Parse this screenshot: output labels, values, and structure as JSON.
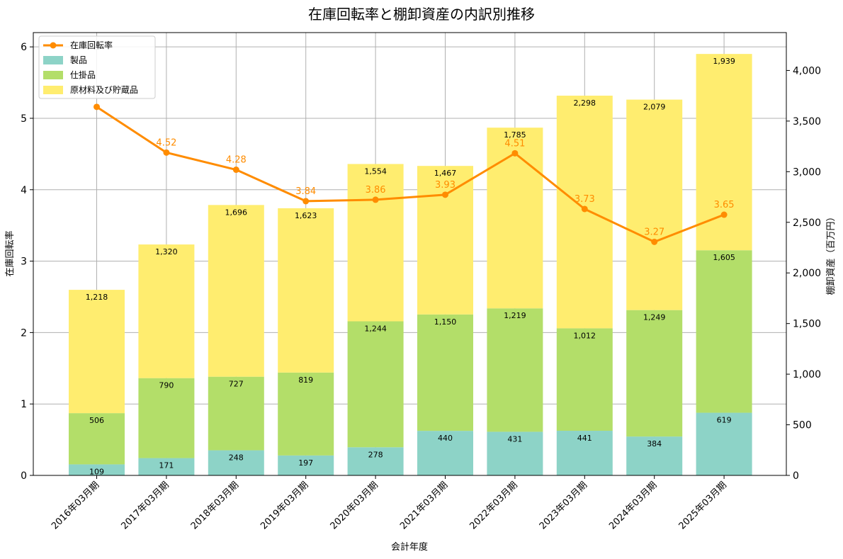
{
  "chart_data": {
    "type": "bar",
    "title": "在庫回転率と棚卸資産の内訳別推移",
    "xlabel": "会計年度",
    "ylabel_left": "在庫回転率",
    "ylabel_right": "棚卸資産（百万円）",
    "categories": [
      "2016年03月期",
      "2017年03月期",
      "2018年03月期",
      "2019年03月期",
      "2020年03月期",
      "2021年03月期",
      "2022年03月期",
      "2023年03月期",
      "2024年03月期",
      "2025年03月期"
    ],
    "series": [
      {
        "name": "製品",
        "kind": "stacked-bar",
        "axis": "right",
        "color": "#8dd3c7",
        "values": [
          109,
          171,
          248,
          197,
          278,
          440,
          431,
          441,
          384,
          619
        ]
      },
      {
        "name": "仕掛品",
        "kind": "stacked-bar",
        "axis": "right",
        "color": "#b3de69",
        "values": [
          506,
          790,
          727,
          819,
          1244,
          1150,
          1219,
          1012,
          1249,
          1605
        ]
      },
      {
        "name": "原材料及び貯蔵品",
        "kind": "stacked-bar",
        "axis": "right",
        "color": "#ffed6f",
        "values": [
          1218,
          1320,
          1696,
          1623,
          1554,
          1467,
          1785,
          2298,
          2079,
          1939
        ]
      },
      {
        "name": "在庫回転率",
        "kind": "line",
        "axis": "left",
        "color": "#ff8c00",
        "values": [
          5.16,
          4.52,
          4.28,
          3.84,
          3.86,
          3.93,
          4.51,
          3.73,
          3.27,
          3.65
        ]
      }
    ],
    "ratio_labels_shown": [
      false,
      true,
      true,
      true,
      true,
      true,
      true,
      true,
      true,
      true
    ],
    "ylim_left": [
      0,
      6.2
    ],
    "ylim_right": [
      0,
      4374
    ],
    "yticks_left": [
      "0",
      "1",
      "2",
      "3",
      "4",
      "5",
      "6"
    ],
    "yticks_right": [
      "0",
      "500",
      "1,000",
      "1,500",
      "2,000",
      "2,500",
      "3,000",
      "3,500",
      "4,000"
    ],
    "grid": true,
    "legend": "top-left"
  }
}
